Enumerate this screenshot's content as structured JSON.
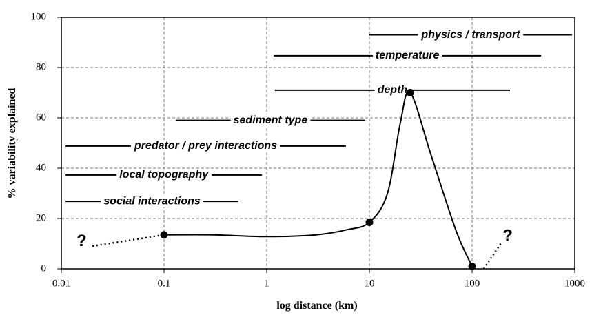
{
  "chart_data": {
    "type": "line",
    "xlabel": "log distance (km)",
    "ylabel": "% variability explained",
    "log_x": true,
    "grid": true,
    "xlim": [
      0.01,
      1000
    ],
    "xticks": [
      0.01,
      0.1,
      1,
      10,
      100,
      1000
    ],
    "ylim": [
      0,
      100
    ],
    "yticks": [
      0,
      20,
      40,
      60,
      80,
      100
    ],
    "curve": {
      "x": [
        0.1,
        0.3,
        1,
        3,
        6,
        10,
        15,
        20,
        25,
        40,
        70,
        100
      ],
      "values": [
        13.5,
        13.5,
        12.8,
        13.5,
        15.5,
        18.5,
        30,
        58,
        70,
        45,
        15,
        1
      ]
    },
    "points": {
      "x": [
        0.1,
        10,
        25,
        100
      ],
      "values": [
        13.5,
        18.5,
        70,
        1
      ]
    },
    "dotted": [
      {
        "x": [
          0.02,
          0.1
        ],
        "values": [
          9,
          13.5
        ],
        "label": "?"
      },
      {
        "x": [
          130,
          190
        ],
        "values": [
          0,
          10
        ],
        "label": "?"
      }
    ],
    "ranges": [
      {
        "text": "physics / transport",
        "x": [
          10,
          1000
        ],
        "y": 93
      },
      {
        "text": "temperature",
        "x": [
          1.17,
          470
        ],
        "y": 84.7
      },
      {
        "text": "depth",
        "x": [
          1.2,
          234
        ],
        "y": 71
      },
      {
        "text": "sediment type",
        "x": [
          0.13,
          9.1
        ],
        "y": 59
      },
      {
        "text": "predator / prey interactions",
        "x": [
          0.011,
          5.9
        ],
        "y": 48.8
      },
      {
        "text": "local topography",
        "x": [
          0.011,
          0.9
        ],
        "y": 37.3
      },
      {
        "text": "social interactions",
        "x": [
          0.011,
          0.53
        ],
        "y": 26.8
      }
    ]
  }
}
